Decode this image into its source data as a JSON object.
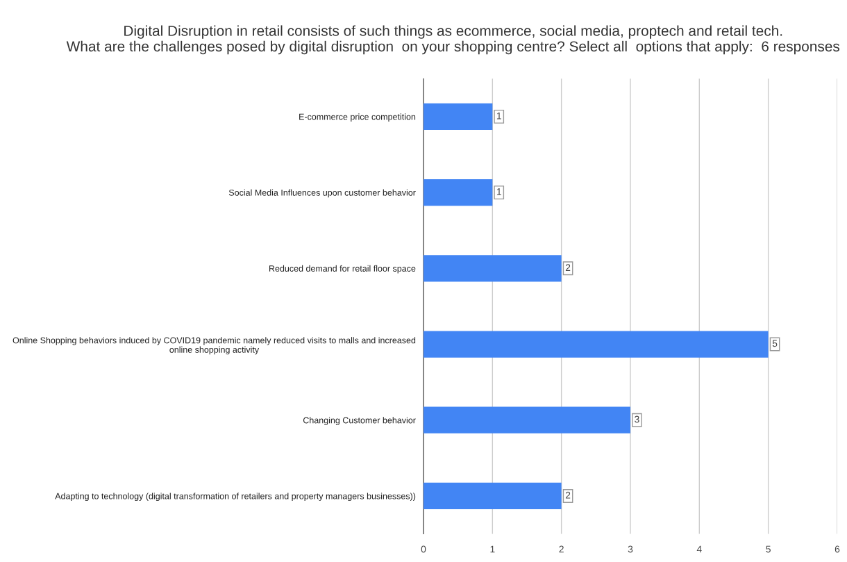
{
  "chart_data": {
    "type": "bar",
    "orientation": "horizontal",
    "title": "Digital Disruption in retail consists of such things as ecommerce, social media, proptech and retail tech.\nWhat are the challenges posed by digital disruption  on your shopping centre? Select all  options that apply:  6 responses",
    "categories": [
      "E-commerce price competition",
      "Social Media Influences upon customer behavior",
      "Reduced demand for retail floor space",
      "Online Shopping behaviors induced by COVID19 pandemic namely reduced visits to malls and increased online shopping activity",
      "Changing Customer behavior",
      "Adapting to technology (digital transformation of retailers and property managers businesses))"
    ],
    "values": [
      1,
      1,
      2,
      5,
      3,
      2
    ],
    "color": "#4285f4",
    "xlim": [
      0,
      6
    ],
    "xticks": [
      0,
      1,
      2,
      3,
      4,
      5,
      6
    ],
    "grid": "x",
    "data_labels": true,
    "legend": false
  }
}
